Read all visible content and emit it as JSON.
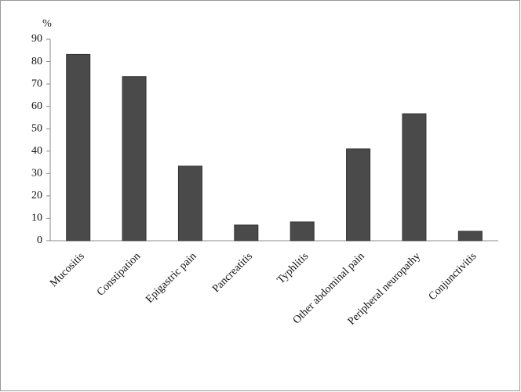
{
  "chart_data": {
    "type": "bar",
    "y_label": "%",
    "categories": [
      "Mucositis",
      "Constipation",
      "Epigastric pain",
      "Pancreatitis",
      "Typhlitis",
      "Other abdominal pain",
      "Peripheral neuropathy",
      "Conjunctivitis"
    ],
    "values": [
      83.2,
      73.3,
      33.3,
      7.0,
      8.4,
      41.0,
      56.7,
      4.2
    ],
    "color": "#4a4a4a",
    "ylim": [
      0,
      90
    ],
    "yticks": [
      0,
      10,
      20,
      30,
      40,
      50,
      60,
      70,
      80,
      90
    ],
    "grid": false
  }
}
